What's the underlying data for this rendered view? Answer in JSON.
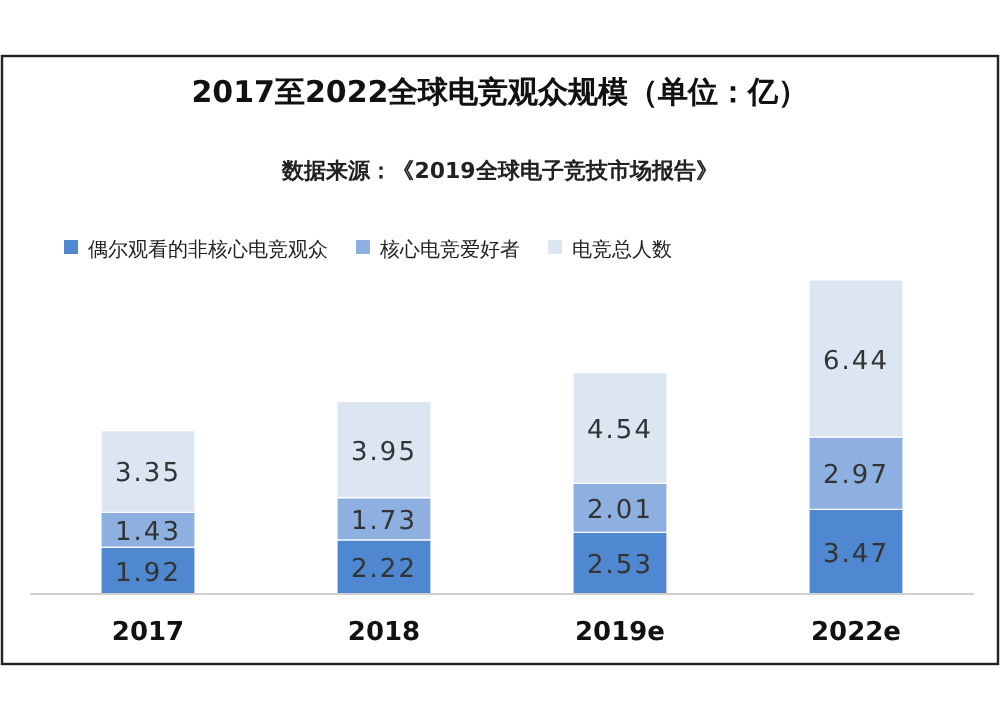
{
  "chart_data": {
    "type": "bar",
    "title": "2017至2022全球电竞观众规模（单位：亿）",
    "subtitle": "数据来源：《2019全球电子竞技市场报告》",
    "categories": [
      "2017",
      "2018",
      "2019e",
      "2022e"
    ],
    "series": [
      {
        "name": "偶尔观看的非核心电竞观众",
        "color": "#4f88d0",
        "values": [
          1.92,
          2.22,
          2.53,
          3.47
        ]
      },
      {
        "name": "核心电竞爱好者",
        "color": "#8db0e0",
        "values": [
          1.43,
          1.73,
          2.01,
          2.97
        ]
      },
      {
        "name": "电竞总人数",
        "color": "#dce6f2",
        "values": [
          3.35,
          3.95,
          4.54,
          6.44
        ]
      }
    ],
    "stacked": true,
    "data_labels": true,
    "legend": "top left"
  }
}
